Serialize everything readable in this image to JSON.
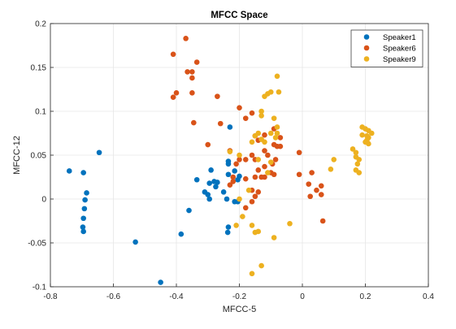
{
  "chart_data": {
    "type": "scatter",
    "title": "MFCC Space",
    "xlabel": "MFCC-5",
    "ylabel": "MFCC-12",
    "xlim": [
      -0.8,
      0.4
    ],
    "ylim": [
      -0.1,
      0.2
    ],
    "xticks": [
      -0.8,
      -0.6,
      -0.4,
      -0.2,
      0,
      0.2,
      0.4
    ],
    "xtick_labels": [
      "-0.8",
      "-0.6",
      "-0.4",
      "-0.2",
      "0",
      "0.2",
      "0.4"
    ],
    "yticks": [
      -0.1,
      -0.05,
      0,
      0.05,
      0.1,
      0.15,
      0.2
    ],
    "ytick_labels": [
      "-0.1",
      "-0.05",
      "0",
      "0.05",
      "0.1",
      "0.15",
      "0.2"
    ],
    "grid": true,
    "legend_position": "top-right",
    "series": [
      {
        "name": "Speaker1",
        "color": "#0072BD",
        "points": [
          [
            -0.645,
            0.053
          ],
          [
            -0.74,
            0.032
          ],
          [
            -0.695,
            0.03
          ],
          [
            -0.685,
            0.007
          ],
          [
            -0.69,
            -0.001
          ],
          [
            -0.692,
            -0.011
          ],
          [
            -0.695,
            -0.022
          ],
          [
            -0.697,
            -0.032
          ],
          [
            -0.695,
            -0.037
          ],
          [
            -0.53,
            -0.049
          ],
          [
            -0.45,
            -0.095
          ],
          [
            -0.385,
            -0.04
          ],
          [
            -0.36,
            -0.013
          ],
          [
            -0.335,
            0.022
          ],
          [
            -0.31,
            0.008
          ],
          [
            -0.3,
            0.005
          ],
          [
            -0.295,
            0.0
          ],
          [
            -0.295,
            0.018
          ],
          [
            -0.29,
            0.033
          ],
          [
            -0.28,
            0.02
          ],
          [
            -0.275,
            0.014
          ],
          [
            -0.27,
            0.019
          ],
          [
            -0.25,
            0.008
          ],
          [
            -0.24,
            0.0
          ],
          [
            -0.235,
            0.043
          ],
          [
            -0.235,
            0.04
          ],
          [
            -0.235,
            0.028
          ],
          [
            -0.235,
            -0.032
          ],
          [
            -0.237,
            -0.038
          ],
          [
            -0.23,
            0.082
          ],
          [
            -0.215,
            0.032
          ],
          [
            -0.215,
            -0.003
          ],
          [
            -0.205,
            -0.003
          ],
          [
            -0.205,
            0.022
          ],
          [
            -0.2,
            0.026
          ]
        ]
      },
      {
        "name": "Speaker6",
        "color": "#D95319",
        "points": [
          [
            -0.37,
            0.183
          ],
          [
            -0.41,
            0.165
          ],
          [
            -0.35,
            0.145
          ],
          [
            -0.365,
            0.145
          ],
          [
            -0.35,
            0.138
          ],
          [
            -0.335,
            0.156
          ],
          [
            -0.4,
            0.121
          ],
          [
            -0.41,
            0.116
          ],
          [
            -0.35,
            0.121
          ],
          [
            -0.27,
            0.117
          ],
          [
            -0.345,
            0.087
          ],
          [
            -0.26,
            0.086
          ],
          [
            -0.3,
            0.062
          ],
          [
            -0.2,
            0.104
          ],
          [
            -0.18,
            0.092
          ],
          [
            -0.16,
            0.098
          ],
          [
            -0.15,
            0.072
          ],
          [
            -0.14,
            0.067
          ],
          [
            -0.12,
            0.073
          ],
          [
            -0.09,
            0.08
          ],
          [
            -0.07,
            0.07
          ],
          [
            -0.09,
            0.062
          ],
          [
            -0.16,
            0.05
          ],
          [
            -0.15,
            0.045
          ],
          [
            -0.18,
            0.045
          ],
          [
            -0.2,
            0.045
          ],
          [
            -0.21,
            0.04
          ],
          [
            -0.23,
            0.055
          ],
          [
            -0.12,
            0.055
          ],
          [
            -0.11,
            0.05
          ],
          [
            -0.08,
            0.06
          ],
          [
            -0.07,
            0.06
          ],
          [
            -0.085,
            0.045
          ],
          [
            -0.095,
            0.04
          ],
          [
            -0.12,
            0.037
          ],
          [
            -0.14,
            0.033
          ],
          [
            -0.13,
            0.025
          ],
          [
            -0.12,
            0.025
          ],
          [
            -0.15,
            0.025
          ],
          [
            -0.18,
            0.023
          ],
          [
            -0.16,
            0.01
          ],
          [
            -0.15,
            0.003
          ],
          [
            -0.14,
            0.008
          ],
          [
            -0.16,
            -0.003
          ],
          [
            -0.1,
            0.03
          ],
          [
            -0.09,
            0.028
          ],
          [
            -0.18,
            -0.01
          ],
          [
            -0.23,
            0.016
          ],
          [
            -0.22,
            0.02
          ],
          [
            -0.01,
            0.053
          ],
          [
            -0.01,
            0.028
          ],
          [
            0.03,
            0.03
          ],
          [
            0.02,
            0.017
          ],
          [
            0.06,
            0.015
          ],
          [
            0.045,
            0.01
          ],
          [
            0.06,
            0.005
          ],
          [
            0.025,
            0.003
          ],
          [
            0.065,
            -0.025
          ],
          [
            -0.22,
            0.025
          ]
        ]
      },
      {
        "name": "Speaker9",
        "color": "#EDB120",
        "points": [
          [
            -0.08,
            0.14
          ],
          [
            -0.075,
            0.122
          ],
          [
            -0.1,
            0.122
          ],
          [
            -0.11,
            0.12
          ],
          [
            -0.12,
            0.117
          ],
          [
            -0.13,
            0.1
          ],
          [
            -0.13,
            0.095
          ],
          [
            -0.09,
            0.092
          ],
          [
            -0.08,
            0.082
          ],
          [
            -0.1,
            0.075
          ],
          [
            -0.08,
            0.075
          ],
          [
            -0.085,
            0.07
          ],
          [
            -0.14,
            0.075
          ],
          [
            -0.13,
            0.068
          ],
          [
            -0.15,
            0.072
          ],
          [
            -0.16,
            0.065
          ],
          [
            -0.12,
            0.065
          ],
          [
            -0.23,
            0.054
          ],
          [
            -0.2,
            0.05
          ],
          [
            -0.14,
            0.045
          ],
          [
            -0.1,
            0.042
          ],
          [
            -0.11,
            0.03
          ],
          [
            -0.17,
            0.01
          ],
          [
            -0.2,
            0.0
          ],
          [
            -0.19,
            -0.02
          ],
          [
            -0.16,
            -0.03
          ],
          [
            -0.14,
            -0.037
          ],
          [
            -0.15,
            -0.038
          ],
          [
            -0.09,
            -0.044
          ],
          [
            -0.04,
            -0.028
          ],
          [
            -0.21,
            -0.03
          ],
          [
            -0.13,
            -0.076
          ],
          [
            -0.16,
            -0.085
          ],
          [
            0.1,
            0.045
          ],
          [
            0.09,
            0.034
          ],
          [
            0.16,
            0.057
          ],
          [
            0.17,
            0.053
          ],
          [
            0.17,
            0.048
          ],
          [
            0.18,
            0.03
          ],
          [
            0.17,
            0.033
          ],
          [
            0.19,
            0.082
          ],
          [
            0.2,
            0.08
          ],
          [
            0.21,
            0.078
          ],
          [
            0.22,
            0.075
          ],
          [
            0.21,
            0.07
          ],
          [
            0.205,
            0.067
          ],
          [
            0.2,
            0.065
          ],
          [
            0.21,
            0.063
          ],
          [
            0.205,
            0.072
          ],
          [
            0.19,
            0.073
          ],
          [
            0.175,
            0.04
          ],
          [
            0.18,
            0.045
          ]
        ]
      }
    ]
  }
}
